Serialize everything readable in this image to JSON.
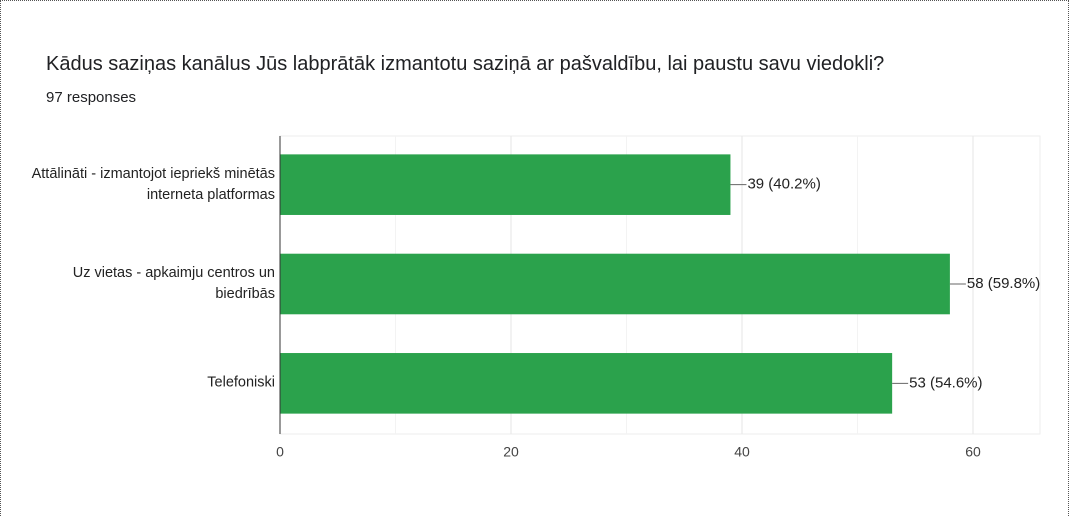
{
  "chart_data": {
    "type": "bar",
    "orientation": "horizontal",
    "title": "Kādus saziņas kanālus Jūs labprātāk izmantotu saziņā ar pašvaldību, lai paustu savu viedokli?",
    "subtitle": "97 responses",
    "categories": [
      "Attālināti - izmantojot iepriekš minētās interneta platformas",
      "Uz vietas - apkaimju centros un biedrībās",
      "Telefoniski"
    ],
    "values": [
      39,
      58,
      53
    ],
    "value_labels": [
      "39 (40.2%)",
      "58 (59.8%)",
      "53 (54.6%)"
    ],
    "color": "#2ba24c",
    "xlim": [
      0,
      60
    ],
    "xticks": [
      0,
      20,
      40,
      60
    ],
    "minor_xticks": [
      10,
      30,
      50
    ],
    "grid": true
  }
}
